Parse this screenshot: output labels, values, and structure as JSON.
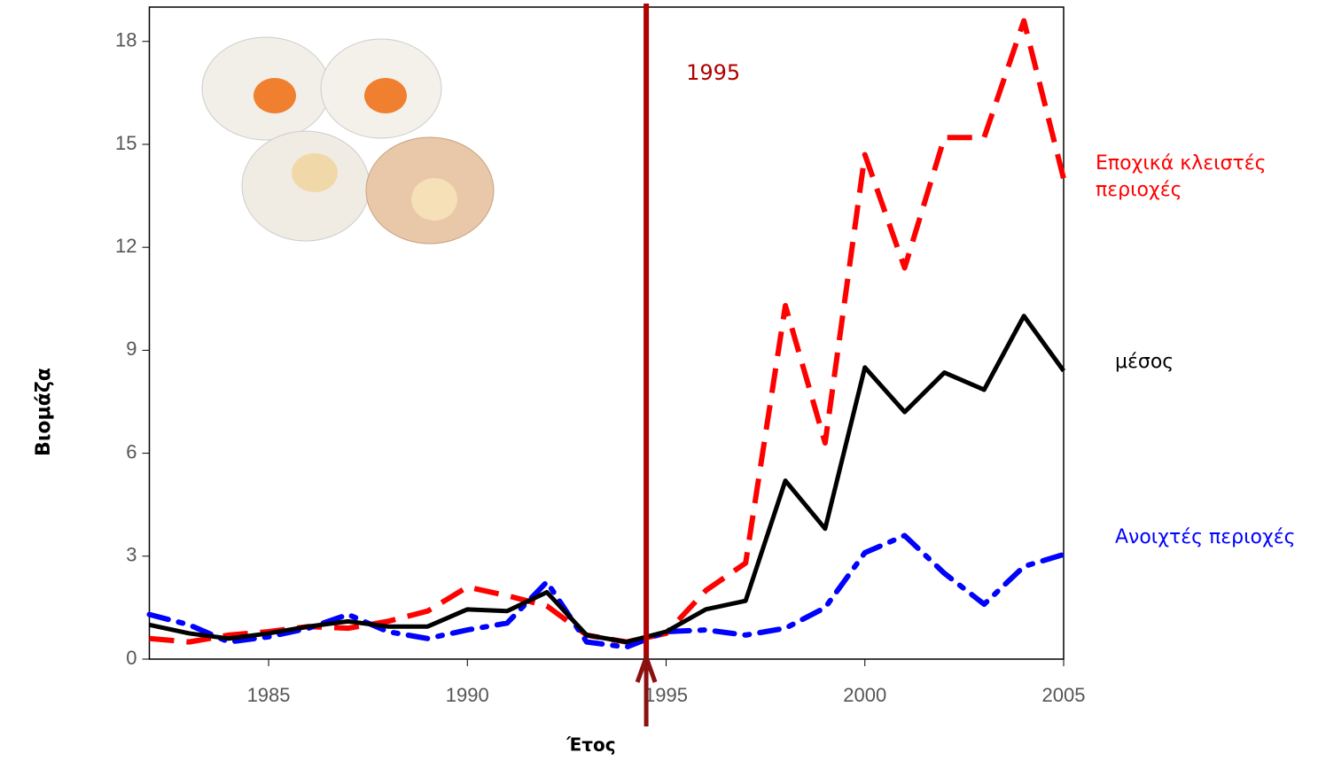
{
  "chart_data": {
    "type": "line",
    "xlabel": "Έτος",
    "ylabel": "Βιομάζα",
    "x": [
      1982,
      1983,
      1984,
      1985,
      1986,
      1987,
      1988,
      1989,
      1990,
      1991,
      1992,
      1993,
      1994,
      1995,
      1996,
      1997,
      1998,
      1999,
      2000,
      2001,
      2002,
      2003,
      2004,
      2005
    ],
    "series": [
      {
        "name": "Εποχικά κλειστές περιοχές",
        "color": "#ff0000",
        "dash": "dashed",
        "values": [
          0.6,
          0.5,
          0.7,
          0.8,
          0.95,
          0.9,
          1.1,
          1.4,
          2.1,
          1.85,
          1.55,
          0.7,
          0.5,
          0.75,
          2.0,
          2.8,
          10.3,
          6.3,
          14.7,
          11.4,
          15.2,
          15.2,
          18.6,
          14.0
        ]
      },
      {
        "name": "μέσος",
        "color": "#000000",
        "dash": "solid",
        "values": [
          1.0,
          0.75,
          0.6,
          0.75,
          0.95,
          1.1,
          0.95,
          0.95,
          1.45,
          1.4,
          1.95,
          0.7,
          0.5,
          0.8,
          1.45,
          1.7,
          5.2,
          3.8,
          8.5,
          7.2,
          8.35,
          7.85,
          10.0,
          8.4
        ]
      },
      {
        "name": "Ανοιχτές περιοχές",
        "color": "#0000ff",
        "dash": "dashdot",
        "values": [
          1.3,
          1.0,
          0.5,
          0.65,
          0.9,
          1.3,
          0.8,
          0.6,
          0.85,
          1.05,
          2.25,
          0.5,
          0.35,
          0.8,
          0.85,
          0.7,
          0.9,
          1.5,
          3.1,
          3.6,
          2.5,
          1.6,
          2.7,
          3.05
        ]
      }
    ],
    "annotation": {
      "x": 1994.5,
      "label": "1995",
      "color": "#b00000"
    },
    "xlim": [
      1982,
      2005
    ],
    "xticks": [
      1985,
      1990,
      1995,
      2000,
      2005
    ],
    "ylim": [
      0,
      19
    ],
    "yticks": [
      0,
      3,
      6,
      9,
      12,
      15,
      18
    ],
    "grid": false
  }
}
